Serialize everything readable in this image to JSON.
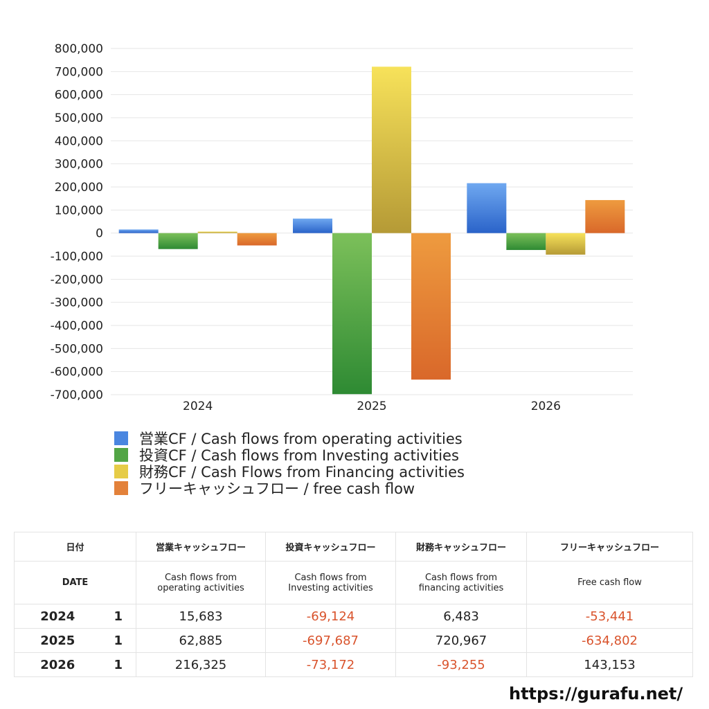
{
  "chart_data": {
    "type": "bar",
    "categories": [
      "2024",
      "2025",
      "2026"
    ],
    "series": [
      {
        "name": "営業CF / Cash flows from operating activities",
        "values": [
          15683,
          62885,
          216325
        ],
        "color_top": "#6fa8f0",
        "color_bottom": "#2a63c9"
      },
      {
        "name": "投資CF / Cash flows from Investing activities",
        "values": [
          -69124,
          -697687,
          -73172
        ],
        "color_top": "#7cc05a",
        "color_bottom": "#2e8a33"
      },
      {
        "name": "財務CF / Cash Flows from Financing activities",
        "values": [
          6483,
          720967,
          -93255
        ],
        "color_top": "#f7e25a",
        "color_bottom": "#b59a36"
      },
      {
        "name": "フリーキャッシュフロー / free cash flow",
        "values": [
          -53441,
          -634802,
          143153
        ],
        "color_top": "#ee9b3f",
        "color_bottom": "#d9682a"
      }
    ],
    "ylim": [
      -700000,
      800000
    ],
    "yticks": [
      "800,000",
      "700,000",
      "600,000",
      "500,000",
      "400,000",
      "300,000",
      "200,000",
      "100,000",
      "0",
      "-100,000",
      "-200,000",
      "-300,000",
      "-400,000",
      "-500,000",
      "-600,000",
      "-700,000"
    ],
    "grid": true,
    "legend_position": "bottom"
  },
  "legend": {
    "items": [
      {
        "label": "営業CF / Cash flows from operating activities",
        "color": "#4a86e0"
      },
      {
        "label": "投資CF / Cash flows from Investing activities",
        "color": "#52a545"
      },
      {
        "label": "財務CF / Cash Flows from Financing activities",
        "color": "#e6cc47"
      },
      {
        "label": "フリーキャッシュフロー / free cash flow",
        "color": "#e3813a"
      }
    ]
  },
  "table": {
    "head_jp": [
      "日付",
      "営業キャッシュフロー",
      "投資キャッシュフロー",
      "財務キャッシュフロー",
      "フリーキャッシュフロー"
    ],
    "head_en": [
      "DATE",
      "Cash flows from",
      "operating activities",
      "Cash flows from",
      "Investing activities",
      "Cash flows from",
      "financing activities",
      "Free cash flow"
    ],
    "rows": [
      {
        "year": "2024",
        "count": "1",
        "op": "15,683",
        "inv": "-69,124",
        "fin": "6,483",
        "fcf": "-53,441"
      },
      {
        "year": "2025",
        "count": "1",
        "op": "62,885",
        "inv": "-697,687",
        "fin": "720,967",
        "fcf": "-634,802"
      },
      {
        "year": "2026",
        "count": "1",
        "op": "216,325",
        "inv": "-73,172",
        "fin": "-93,255",
        "fcf": "143,153"
      }
    ],
    "negative_color": "#d9532c"
  },
  "source_url": "https://gurafu.net/"
}
